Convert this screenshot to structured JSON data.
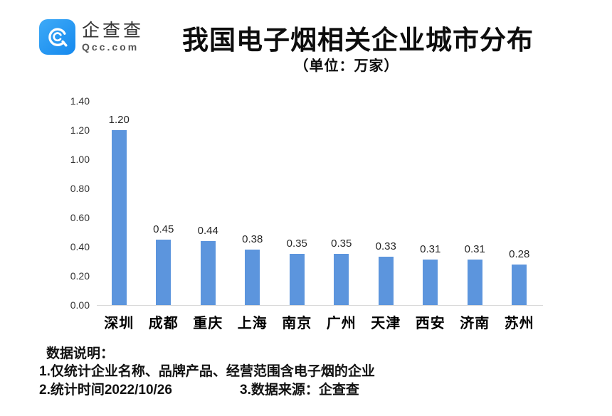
{
  "logo": {
    "name": "企查查",
    "domain": "Qcc.com",
    "brand_color": "#1990f0"
  },
  "header": {
    "title": "我国电子烟相关企业城市分布",
    "unit_label": "（单位：万家）"
  },
  "chart_data": {
    "type": "bar",
    "title": "我国电子烟相关企业城市分布",
    "unit_label": "（单位：万家）",
    "categories": [
      "深圳",
      "成都",
      "重庆",
      "上海",
      "南京",
      "广州",
      "天津",
      "西安",
      "济南",
      "苏州"
    ],
    "values": [
      1.2,
      0.45,
      0.44,
      0.38,
      0.35,
      0.35,
      0.33,
      0.31,
      0.31,
      0.28
    ],
    "value_labels": [
      "1.20",
      "0.45",
      "0.44",
      "0.38",
      "0.35",
      "0.35",
      "0.33",
      "0.31",
      "0.31",
      "0.28"
    ],
    "y_ticks": [
      "1.40",
      "1.20",
      "1.00",
      "0.80",
      "0.60",
      "0.40",
      "0.20",
      "0.00"
    ],
    "ylim": [
      0,
      1.4
    ],
    "xlabel": "",
    "ylabel": "",
    "grid": false,
    "legend": "none",
    "bar_color": "#5c95dd",
    "axis_line_color": "#d9d9d9"
  },
  "footer": {
    "heading": "数据说明：",
    "note1": "1.仅统计企业名称、品牌产品、经营范围含电子烟的企业",
    "note2": "2.统计时间2022/10/26",
    "note3": "3.数据来源：企查查"
  }
}
